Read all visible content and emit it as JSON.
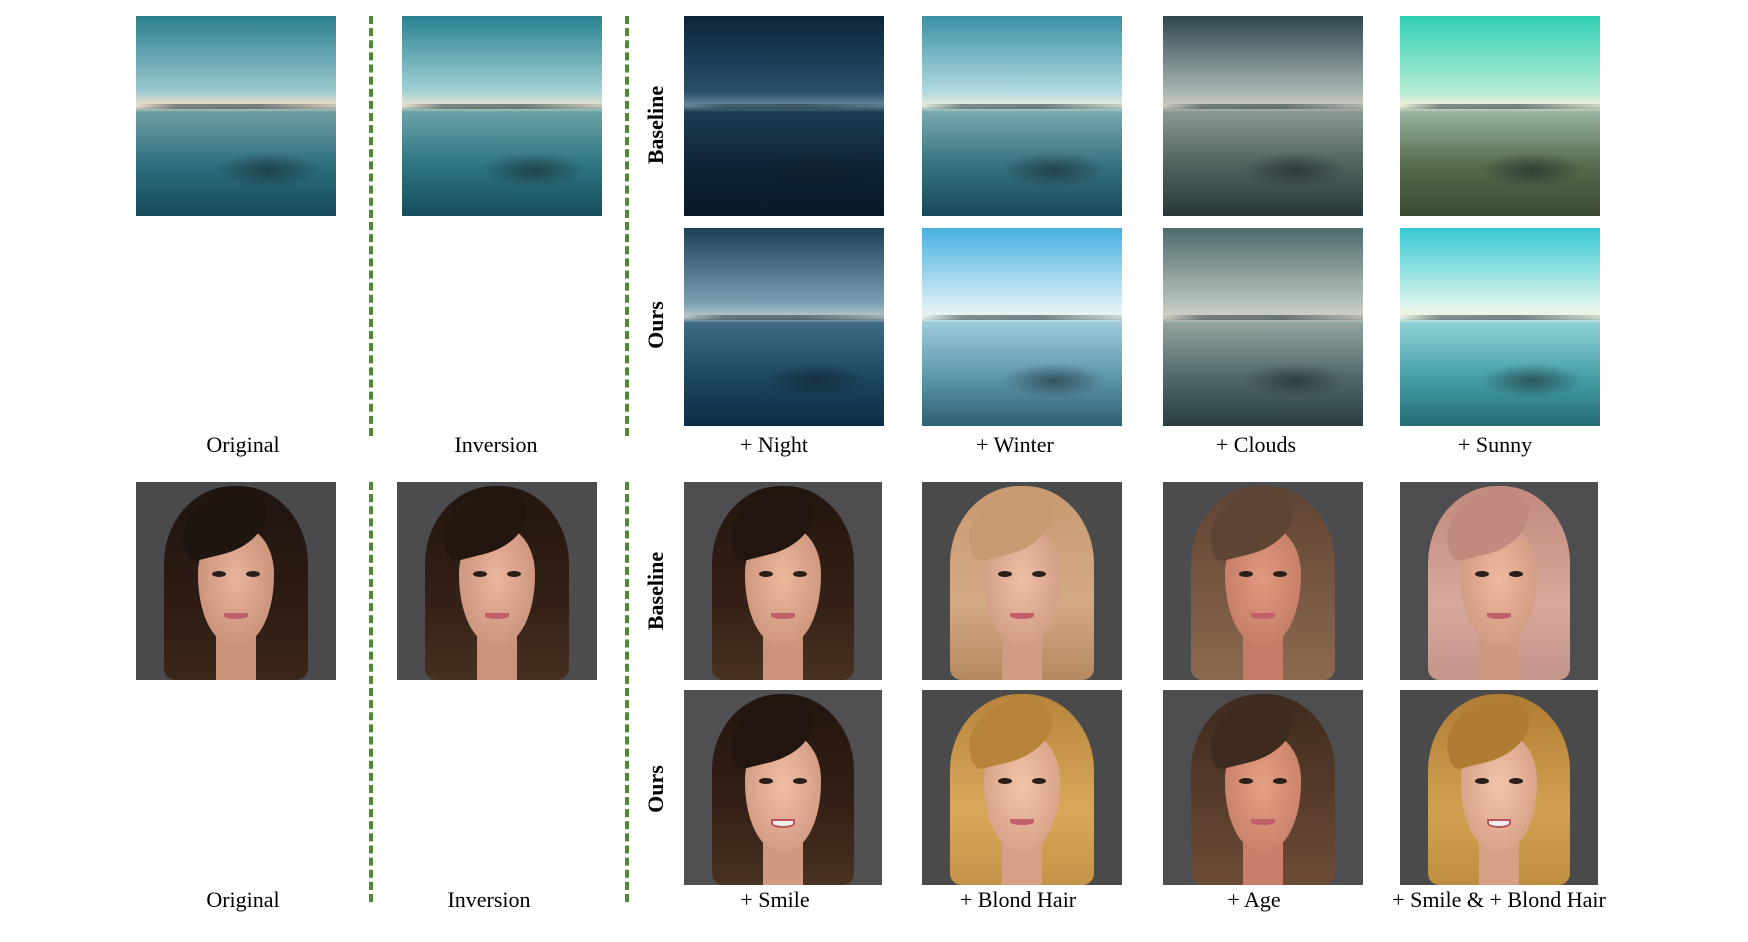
{
  "top_block": {
    "captions": {
      "original": "Original",
      "inversion": "Inversion",
      "night": "+ Night",
      "winter": "+ Winter",
      "clouds": "+ Clouds",
      "sunny": "+ Sunny"
    },
    "row_labels": {
      "baseline": "Baseline",
      "ours": "Ours"
    }
  },
  "bottom_block": {
    "captions": {
      "original": "Original",
      "inversion": "Inversion",
      "smile": "+ Smile",
      "blond": "+ Blond Hair",
      "age": "+ Age",
      "smile_blond": "+ Smile & + Blond Hair"
    },
    "row_labels": {
      "baseline": "Baseline",
      "ours": "Ours"
    }
  },
  "colors": {
    "divider": "#4e8a32"
  }
}
